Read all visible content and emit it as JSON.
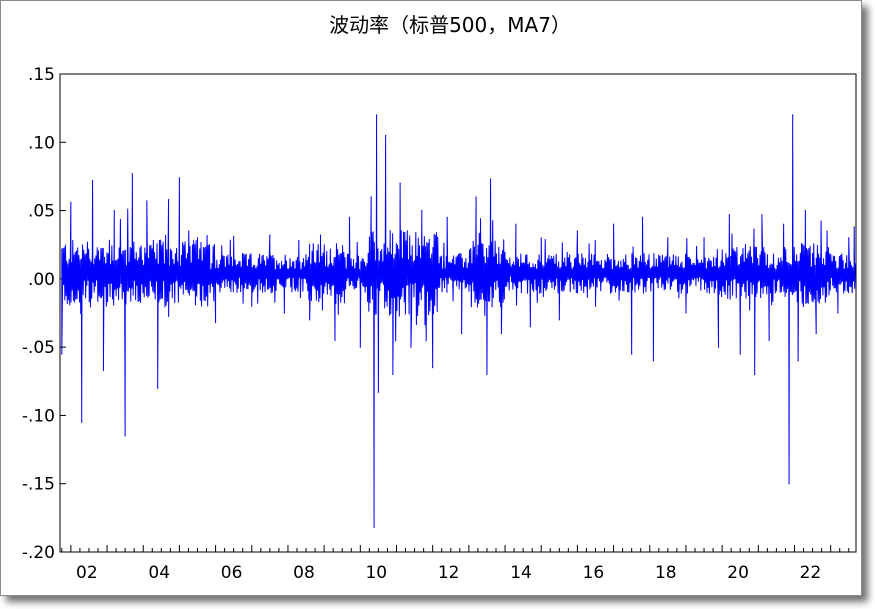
{
  "chart_data": {
    "type": "line",
    "title": "波动率（标普500，MA7）",
    "xlabel": "",
    "ylabel": "",
    "x_range": [
      2001.7,
      2023.7
    ],
    "ylim": [
      -0.2,
      0.15
    ],
    "y_ticks": [
      0.15,
      0.1,
      0.05,
      0.0,
      -0.05,
      -0.1,
      -0.15,
      -0.2
    ],
    "y_tick_labels": [
      ".15",
      ".10",
      ".05",
      ".00",
      "-.05",
      "-.10",
      "-.15",
      "-.20"
    ],
    "x_ticks": [
      2002,
      2004,
      2006,
      2008,
      2010,
      2012,
      2014,
      2016,
      2018,
      2020,
      2022
    ],
    "x_tick_labels": [
      "02",
      "04",
      "06",
      "08",
      "10",
      "12",
      "14",
      "16",
      "18",
      "20",
      "22"
    ],
    "grid": false,
    "legend": "none",
    "series_color": "#0000ff",
    "series": [
      {
        "x": [
          2001.75,
          2002.0,
          2002.3,
          2002.6,
          2002.9,
          2003.2,
          2003.5,
          2003.7,
          2004.1,
          2004.4,
          2004.7,
          2005.0,
          2005.5,
          2006.0,
          2006.5,
          2007.0,
          2007.5,
          2007.9,
          2008.3,
          2008.6,
          2008.9,
          2009.3,
          2009.7,
          2010.0,
          2010.3,
          2010.38,
          2010.45,
          2010.5,
          2010.7,
          2010.9,
          2011.1,
          2011.4,
          2011.7,
          2012.0,
          2012.4,
          2012.8,
          2013.2,
          2013.5,
          2013.6,
          2013.9,
          2014.3,
          2014.7,
          2015.0,
          2015.5,
          2016.0,
          2016.5,
          2017.0,
          2017.5,
          2017.8,
          2018.1,
          2018.5,
          2019.0,
          2019.5,
          2019.9,
          2020.2,
          2020.5,
          2020.9,
          2021.1,
          2021.3,
          2021.7,
          2021.85,
          2021.95,
          2022.1,
          2022.3,
          2022.6,
          2022.9,
          2023.2,
          2023.5,
          2023.65
        ],
        "y": [
          -0.055,
          0.056,
          -0.105,
          0.072,
          -0.067,
          0.05,
          -0.115,
          0.077,
          0.057,
          -0.08,
          0.058,
          0.074,
          0.03,
          -0.032,
          0.031,
          -0.02,
          0.032,
          -0.025,
          0.028,
          -0.03,
          0.032,
          -0.045,
          0.045,
          -0.05,
          0.06,
          -0.182,
          0.12,
          -0.083,
          0.105,
          -0.07,
          0.07,
          -0.05,
          0.05,
          -0.065,
          0.045,
          -0.04,
          0.06,
          -0.07,
          0.073,
          -0.04,
          0.04,
          -0.035,
          0.03,
          -0.03,
          0.035,
          -0.02,
          0.04,
          -0.055,
          0.045,
          -0.06,
          0.03,
          -0.025,
          0.03,
          -0.05,
          0.047,
          -0.055,
          -0.07,
          0.047,
          -0.045,
          0.04,
          -0.15,
          0.12,
          -0.06,
          0.05,
          -0.04,
          0.035,
          -0.025,
          0.03,
          0.038
        ]
      }
    ]
  }
}
